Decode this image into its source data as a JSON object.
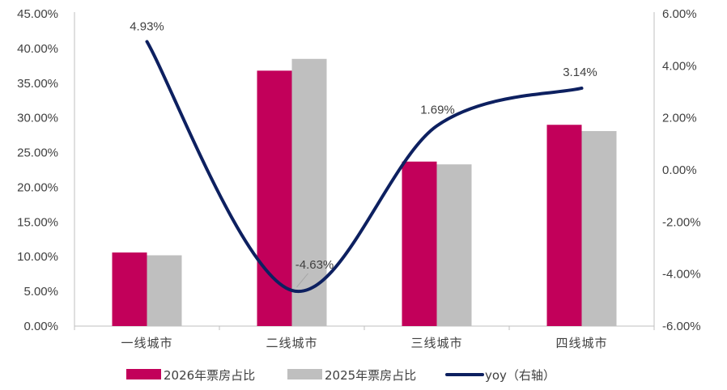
{
  "chart_data": {
    "type": "bar",
    "categories": [
      "一线城市",
      "二线城市",
      "三线城市",
      "四线城市"
    ],
    "series": [
      {
        "name": "2026年票房占比",
        "type": "bar",
        "axis": "left",
        "color": "#c2005a",
        "values": [
          10.6,
          36.8,
          23.7,
          29.0
        ]
      },
      {
        "name": "2025年票房占比",
        "type": "bar",
        "axis": "left",
        "color": "#bfbfbf",
        "values": [
          10.2,
          38.5,
          23.3,
          28.1
        ]
      },
      {
        "name": "yoy（右轴）",
        "type": "line",
        "axis": "right",
        "color": "#0d2060",
        "values": [
          4.93,
          -4.63,
          1.69,
          3.14
        ]
      }
    ],
    "data_labels": [
      "4.93%",
      "-4.63%",
      "1.69%",
      "3.14%"
    ],
    "left_axis": {
      "ylim": [
        0,
        45
      ],
      "step": 5,
      "tick_labels": [
        "0.00%",
        "5.00%",
        "10.00%",
        "15.00%",
        "20.00%",
        "25.00%",
        "30.00%",
        "35.00%",
        "40.00%",
        "45.00%"
      ]
    },
    "right_axis": {
      "ylim": [
        -6,
        6
      ],
      "step": 2,
      "tick_labels": [
        "-6.00%",
        "-4.00%",
        "-2.00%",
        "0.00%",
        "2.00%",
        "4.00%",
        "6.00%"
      ]
    },
    "grid": false,
    "legend_position": "bottom"
  }
}
